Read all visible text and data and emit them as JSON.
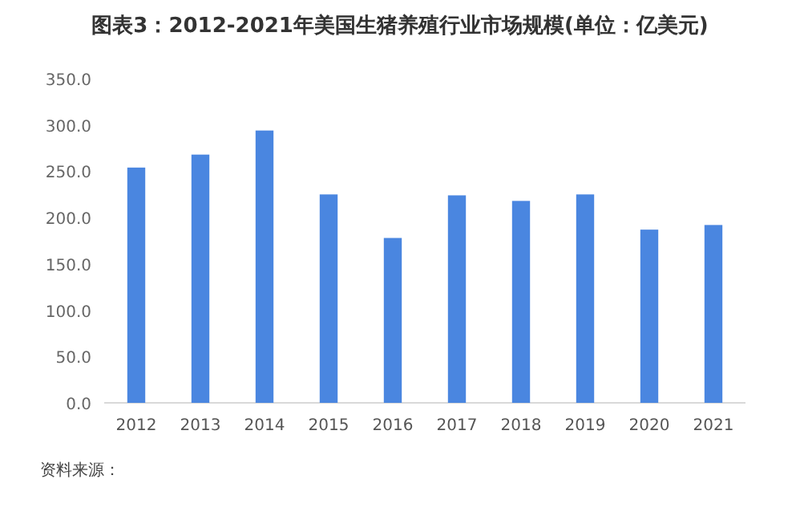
{
  "chart_data": {
    "type": "bar",
    "title": "图表3：2012-2021年美国生猪养殖行业市场规模(单位：亿美元)",
    "categories": [
      "2012",
      "2013",
      "2014",
      "2015",
      "2016",
      "2017",
      "2018",
      "2019",
      "2020",
      "2021"
    ],
    "values": [
      254,
      268,
      294,
      225,
      178,
      224,
      218,
      225,
      187,
      192
    ],
    "color": "#4a86e0",
    "ylim": [
      0,
      350
    ],
    "yticks": [
      {
        "value": 0,
        "label": "0.0"
      },
      {
        "value": 50,
        "label": "50.0"
      },
      {
        "value": 100,
        "label": "100.0"
      },
      {
        "value": 150,
        "label": "150.0"
      },
      {
        "value": 200,
        "label": "200.0"
      },
      {
        "value": 250,
        "label": "250.0"
      },
      {
        "value": 300,
        "label": "300.0"
      },
      {
        "value": 350,
        "label": "350.0"
      }
    ],
    "grid": false,
    "annotations": [
      "资料来源："
    ]
  }
}
